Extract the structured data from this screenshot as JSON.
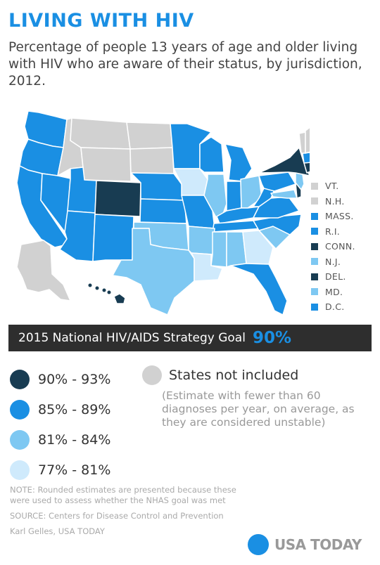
{
  "header": {
    "title": "LIVING WITH HIV",
    "subtitle": "Percentage of people 13 years of age and older living with HIV who are aware of their status, by jurisdiction, 2012."
  },
  "colors": {
    "dark": "#183c52",
    "medium": "#1a8fe3",
    "light": "#7ec8f2",
    "lightest": "#cfeafc",
    "excluded": "#d1d1d1",
    "accent": "#1a8fe3"
  },
  "small_states": [
    {
      "label": "VT.",
      "category": "excluded"
    },
    {
      "label": "N.H.",
      "category": "excluded"
    },
    {
      "label": "MASS.",
      "category": "medium"
    },
    {
      "label": "R.I.",
      "category": "medium"
    },
    {
      "label": "CONN.",
      "category": "dark"
    },
    {
      "label": "N.J.",
      "category": "light"
    },
    {
      "label": "DEL.",
      "category": "dark"
    },
    {
      "label": "MD.",
      "category": "light"
    },
    {
      "label": "D.C.",
      "category": "medium"
    }
  ],
  "goal": {
    "label": "2015 National HIV/AIDS Strategy Goal",
    "value": "90%"
  },
  "legend": [
    {
      "label": "90% - 93%",
      "category": "dark"
    },
    {
      "label": "85% - 89%",
      "category": "medium"
    },
    {
      "label": "81% - 84%",
      "category": "light"
    },
    {
      "label": "77% - 81%",
      "category": "lightest"
    }
  ],
  "excluded": {
    "title": "States not included",
    "note": "(Estimate with fewer than 60 diagnoses per year, on average, as they are considered unstable)"
  },
  "footer": {
    "note": "NOTE:  Rounded estimates are presented because these were used to assess whether the NHAS goal was met",
    "source": "SOURCE:  Centers for Disease Control and Prevention",
    "credit": "Karl Gelles, USA TODAY"
  },
  "logo": {
    "text": "USA TODAY"
  }
}
